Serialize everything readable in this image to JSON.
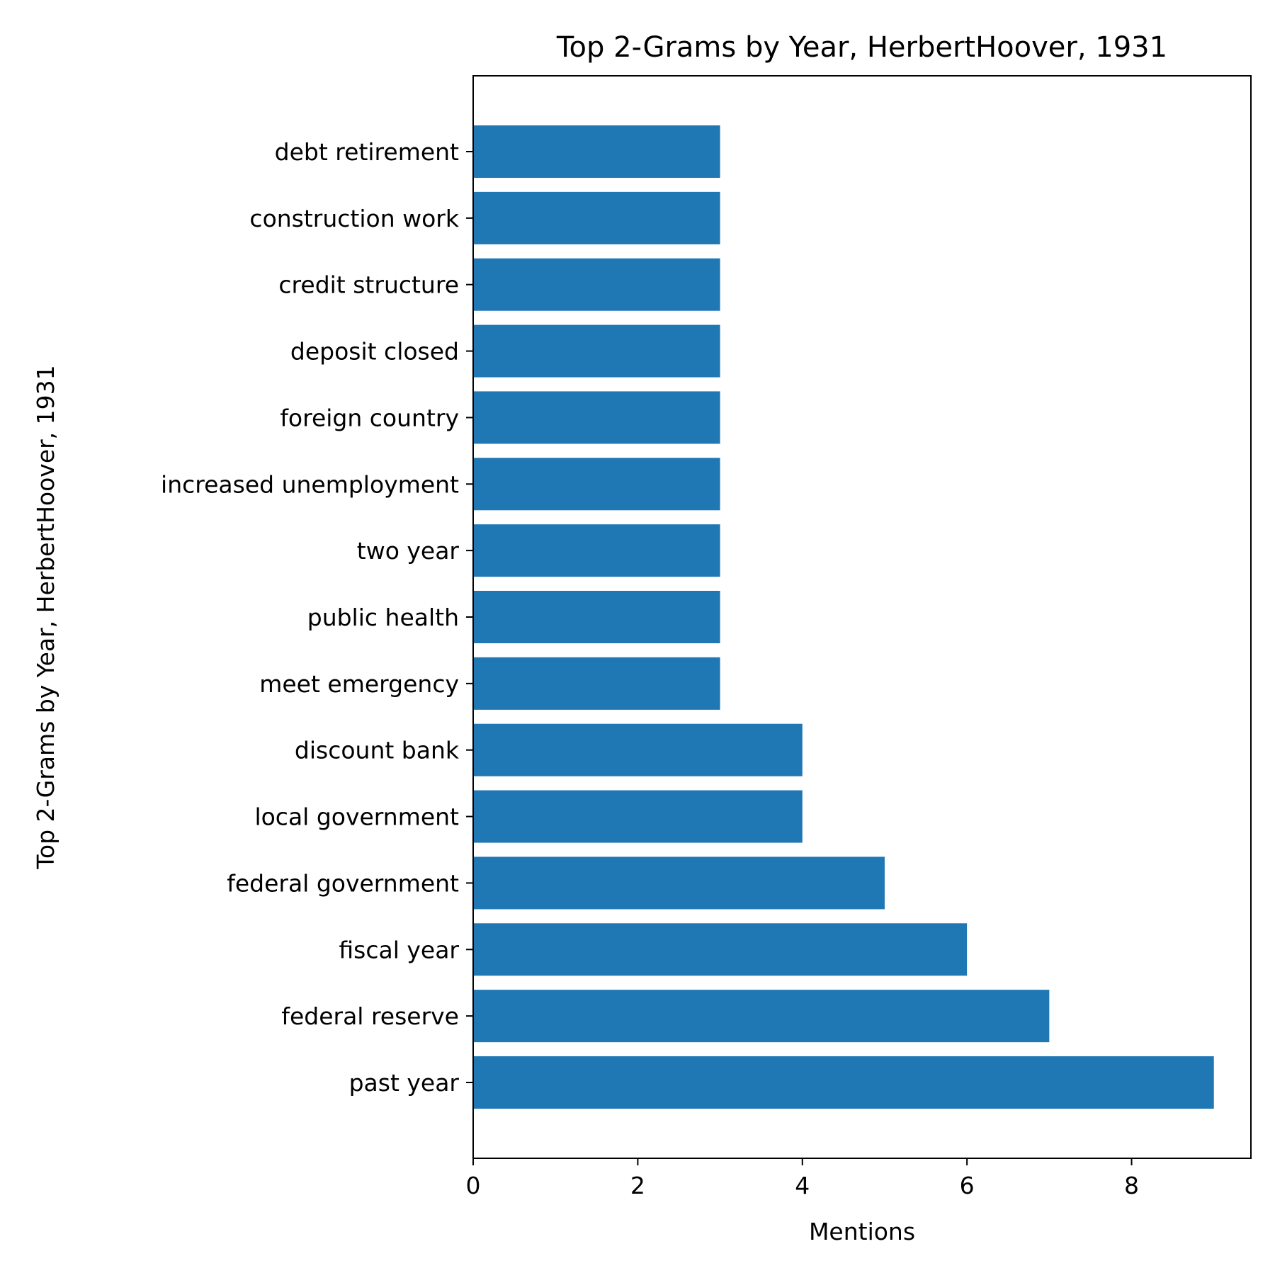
{
  "chart_data": {
    "type": "bar",
    "orientation": "horizontal",
    "title": "Top 2-Grams by Year, HerbertHoover, 1931",
    "xlabel": "Mentions",
    "ylabel": "Top 2-Grams by Year, HerbertHoover, 1931",
    "categories": [
      "past year",
      "federal reserve",
      "fiscal year",
      "federal government",
      "local government",
      "discount bank",
      "meet emergency",
      "public health",
      "two year",
      "increased unemployment",
      "foreign country",
      "deposit closed",
      "credit structure",
      "construction work",
      "debt retirement"
    ],
    "values": [
      9,
      7,
      6,
      5,
      4,
      4,
      3,
      3,
      3,
      3,
      3,
      3,
      3,
      3,
      3
    ],
    "xlim": [
      0,
      9.45
    ],
    "xticks": [
      0,
      2,
      4,
      6,
      8
    ],
    "bar_color": "#1f77b4",
    "grid": false,
    "legend": "none"
  }
}
